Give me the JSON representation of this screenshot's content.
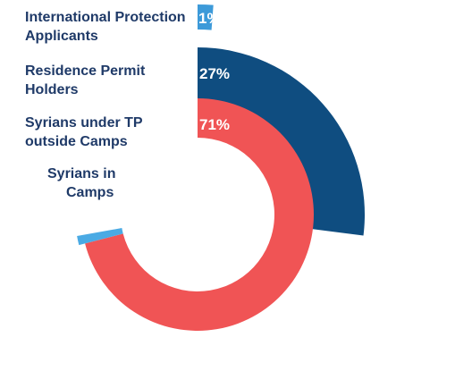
{
  "chart_data": {
    "type": "radial-bar",
    "unit": "%",
    "categories": [
      "International Protection Applicants",
      "Residence Permit Holders",
      "Syrians under TP outside Camps",
      "Syrians in Camps"
    ],
    "label_lines": [
      [
        "International Protection",
        "Applicants"
      ],
      [
        "Residence Permit",
        "Holders"
      ],
      [
        "Syrians under TP",
        "outside Camps"
      ],
      [
        "Syrians in",
        "Camps"
      ]
    ],
    "values": [
      1,
      27,
      71,
      1
    ],
    "value_labels": [
      "1%",
      "27%",
      "71%",
      "1%"
    ],
    "colors": [
      "#3d9ad9",
      "#0f4d80",
      "#f05455",
      "#4aaae4"
    ],
    "label_color": "#1f3a68"
  }
}
